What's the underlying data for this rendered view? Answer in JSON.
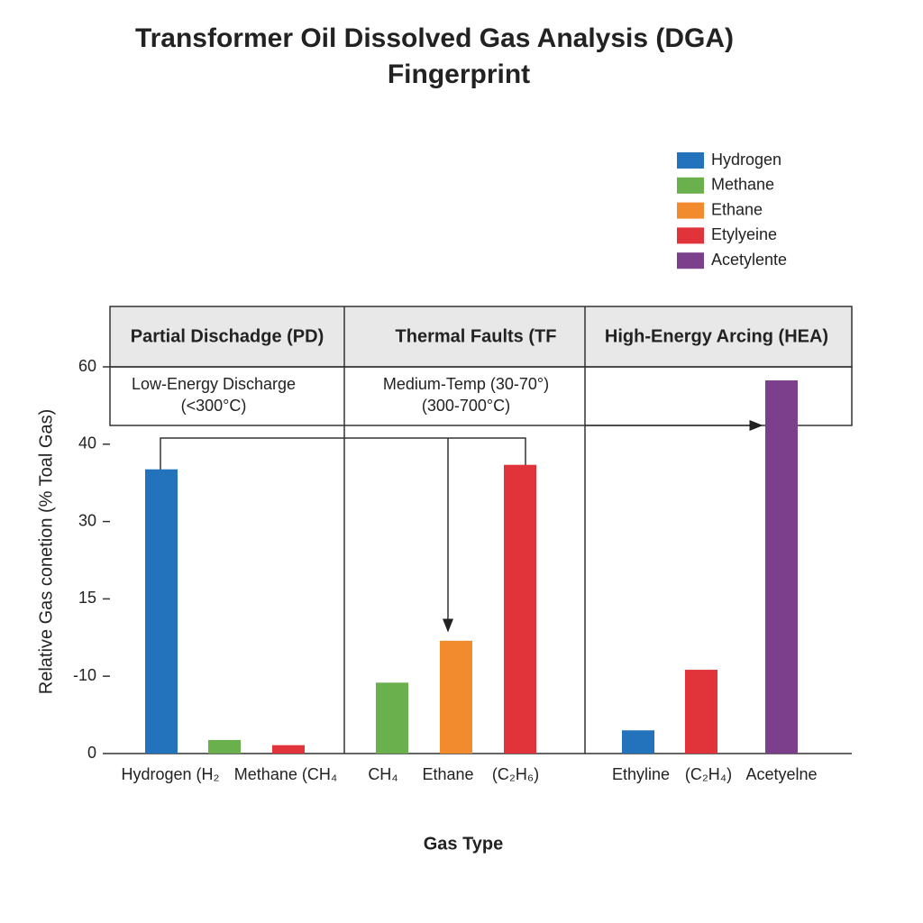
{
  "chart_data": {
    "type": "bar",
    "title": [
      "Transformer Oil Dissolved Gas Analysis (DGA)",
      "Fingerprint"
    ],
    "x_label": "Gas Type",
    "y_label": "Relative Gas conetion (% Toal Gas)",
    "categories": [
      "Hydrogen (H₂",
      null,
      "Methane (CH₄",
      "CH₄",
      "Ethane",
      "(C₂H₆)",
      "Ethyline",
      "(C₂H₄)",
      "Acetyelne"
    ],
    "series": [
      {
        "name": "Hydrogen",
        "color": "#2272bc",
        "values": [
          44.1,
          null,
          null,
          null,
          null,
          null,
          3.6,
          null,
          null
        ]
      },
      {
        "name": "Methane",
        "color": "#6ab04c",
        "values": [
          null,
          2.1,
          null,
          11.0,
          null,
          null,
          null,
          null,
          null
        ]
      },
      {
        "name": "Ethane",
        "color": "#f28a2e",
        "values": [
          null,
          null,
          null,
          null,
          17.5,
          null,
          null,
          null,
          null
        ]
      },
      {
        "name": "Etylyeine",
        "color": "#e0343a",
        "values": [
          null,
          null,
          1.3,
          null,
          null,
          44.8,
          null,
          13.0,
          null
        ]
      },
      {
        "name": "Acetylente",
        "color": "#7b3f8c",
        "values": [
          null,
          null,
          null,
          null,
          null,
          null,
          null,
          null,
          57.9
        ]
      }
    ],
    "ylim": [
      0,
      60
    ],
    "yticks": [
      0,
      {
        "value": 12,
        "label": "-10"
      },
      {
        "value": 24,
        "label": "15"
      },
      {
        "value": 36,
        "label": "30"
      },
      {
        "value": 48,
        "label": "40"
      },
      60
    ],
    "grid": false,
    "legend": "top-right",
    "panels": [
      {
        "title": "Partial Dischadge (PD)",
        "note": [
          "Low-Energy Discharge",
          "(<300°C)"
        ]
      },
      {
        "title": "Thermal Faults (TF",
        "note": [
          "Medium-Temp (30-70°)",
          "(300-700°C)"
        ]
      },
      {
        "title": "High-Energy Arcing (HEA)",
        "note": []
      }
    ]
  }
}
